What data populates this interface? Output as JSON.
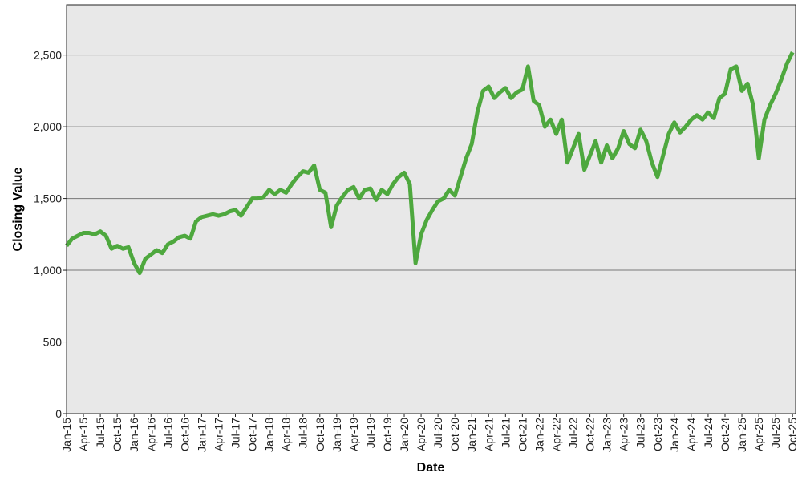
{
  "chart_data": {
    "type": "line",
    "title": "",
    "xlabel": "Date",
    "ylabel": "Closing Value",
    "ylim": [
      0,
      2850
    ],
    "yticks": [
      0,
      500,
      1000,
      1500,
      2000,
      2500
    ],
    "ytick_labels": [
      "0",
      "500",
      "1,000",
      "1,500",
      "2,000",
      "2,500"
    ],
    "xtick_labels": [
      "Jan-15",
      "Apr-15",
      "Jul-15",
      "Oct-15",
      "Jan-16",
      "Apr-16",
      "Jul-16",
      "Oct-16",
      "Jan-17",
      "Apr-17",
      "Jul-17",
      "Oct-17",
      "Jan-18",
      "Apr-18",
      "Jul-18",
      "Oct-18",
      "Jan-19",
      "Apr-19",
      "Jul-19",
      "Oct-19",
      "Jan-20",
      "Apr-20",
      "Jul-20",
      "Oct-20",
      "Jan-21",
      "Apr-21",
      "Jul-21",
      "Oct-21",
      "Jan-22",
      "Apr-22",
      "Jul-22",
      "Oct-22",
      "Jan-23",
      "Apr-23",
      "Jul-23",
      "Oct-23",
      "Jan-24",
      "Apr-24",
      "Jul-24",
      "Oct-24",
      "Jan-25",
      "Apr-25",
      "Jul-25",
      "Oct-25"
    ],
    "grid": true,
    "background": "#e8e8e8",
    "line_color": "#4ea83e",
    "series": [
      {
        "start": "2015-01",
        "frequency": "monthly",
        "values": [
          1170,
          1220,
          1240,
          1260,
          1260,
          1250,
          1270,
          1240,
          1150,
          1170,
          1150,
          1160,
          1050,
          980,
          1080,
          1110,
          1140,
          1120,
          1180,
          1200,
          1230,
          1240,
          1220,
          1340,
          1370,
          1380,
          1390,
          1380,
          1390,
          1410,
          1420,
          1380,
          1440,
          1500,
          1500,
          1510,
          1560,
          1530,
          1560,
          1540,
          1600,
          1650,
          1690,
          1680,
          1730,
          1560,
          1540,
          1300,
          1450,
          1510,
          1560,
          1580,
          1500,
          1560,
          1570,
          1490,
          1560,
          1530,
          1600,
          1650,
          1680,
          1600,
          1050,
          1250,
          1350,
          1420,
          1480,
          1500,
          1560,
          1520,
          1650,
          1780,
          1880,
          2100,
          2250,
          2280,
          2200,
          2240,
          2270,
          2200,
          2240,
          2260,
          2420,
          2180,
          2150,
          2000,
          2050,
          1950,
          2050,
          1750,
          1850,
          1950,
          1700,
          1800,
          1900,
          1750,
          1870,
          1780,
          1850,
          1970,
          1880,
          1850,
          1980,
          1900,
          1750,
          1650,
          1800,
          1950,
          2030,
          1960,
          2000,
          2050,
          2080,
          2050,
          2100,
          2060,
          2200,
          2230,
          2400,
          2420,
          2250,
          2300,
          2150,
          1780,
          2050,
          2150,
          2230,
          2330,
          2440,
          2520
        ]
      }
    ]
  }
}
